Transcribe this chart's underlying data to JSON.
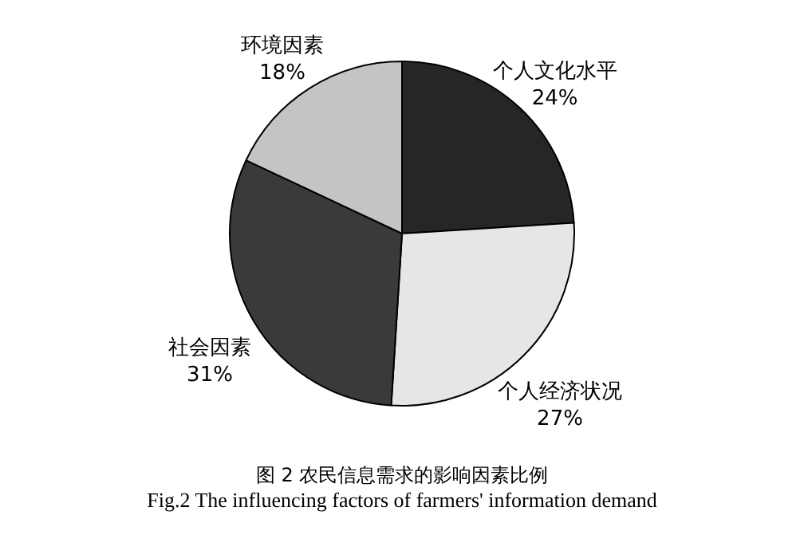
{
  "chart_data": {
    "type": "pie",
    "title": "图 2  农民信息需求的影响因素比例",
    "subtitle": "Fig.2    The influencing factors of farmers' information demand",
    "categories": [
      "个人文化水平",
      "个人经济状况",
      "社会因素",
      "环境因素"
    ],
    "values": [
      24,
      27,
      31,
      18
    ],
    "value_labels": [
      "24%",
      "27%",
      "31%",
      "18%"
    ],
    "colors": [
      "#262626",
      "#e6e6e6",
      "#3a3a3a",
      "#c4c4c4"
    ],
    "legend": false
  }
}
